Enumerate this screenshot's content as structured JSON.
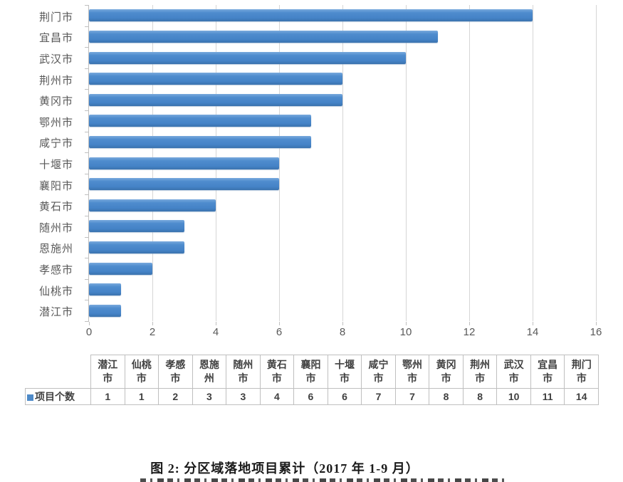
{
  "figure": {
    "caption": "图 2: 分区域落地项目累计（2017 年 1-9 月）"
  },
  "chart_data": {
    "type": "bar",
    "orientation": "horizontal",
    "title": "",
    "xlabel": "",
    "ylabel": "",
    "series_name": "项目个数",
    "categories": [
      "荆门市",
      "宜昌市",
      "武汉市",
      "荆州市",
      "黄冈市",
      "鄂州市",
      "咸宁市",
      "十堰市",
      "襄阳市",
      "黄石市",
      "随州市",
      "恩施州",
      "孝感市",
      "仙桃市",
      "潜江市"
    ],
    "values": [
      14,
      11,
      10,
      8,
      8,
      7,
      7,
      6,
      6,
      4,
      3,
      3,
      2,
      1,
      1
    ],
    "xlim": [
      0,
      16
    ],
    "x_ticks": [
      0,
      2,
      4,
      6,
      8,
      10,
      12,
      14,
      16
    ],
    "grid": "vertical-major",
    "legend_position": "data-table-below",
    "bar_color": "#4a87c9",
    "gridline_color": "#d6d6d6",
    "axis_color": "#bfbfbf",
    "tick_label_color": "#595959"
  },
  "data_table": {
    "row_label": "项目个数",
    "legend_marker_color": "#4e8ac8",
    "columns": [
      "潜江市",
      "仙桃市",
      "孝感市",
      "恩施州",
      "随州市",
      "黄石市",
      "襄阳市",
      "十堰市",
      "咸宁市",
      "鄂州市",
      "黄冈市",
      "荆州市",
      "武汉市",
      "宜昌市",
      "荆门市"
    ],
    "values": [
      1,
      1,
      2,
      3,
      3,
      4,
      6,
      6,
      7,
      7,
      8,
      8,
      10,
      11,
      14
    ]
  }
}
